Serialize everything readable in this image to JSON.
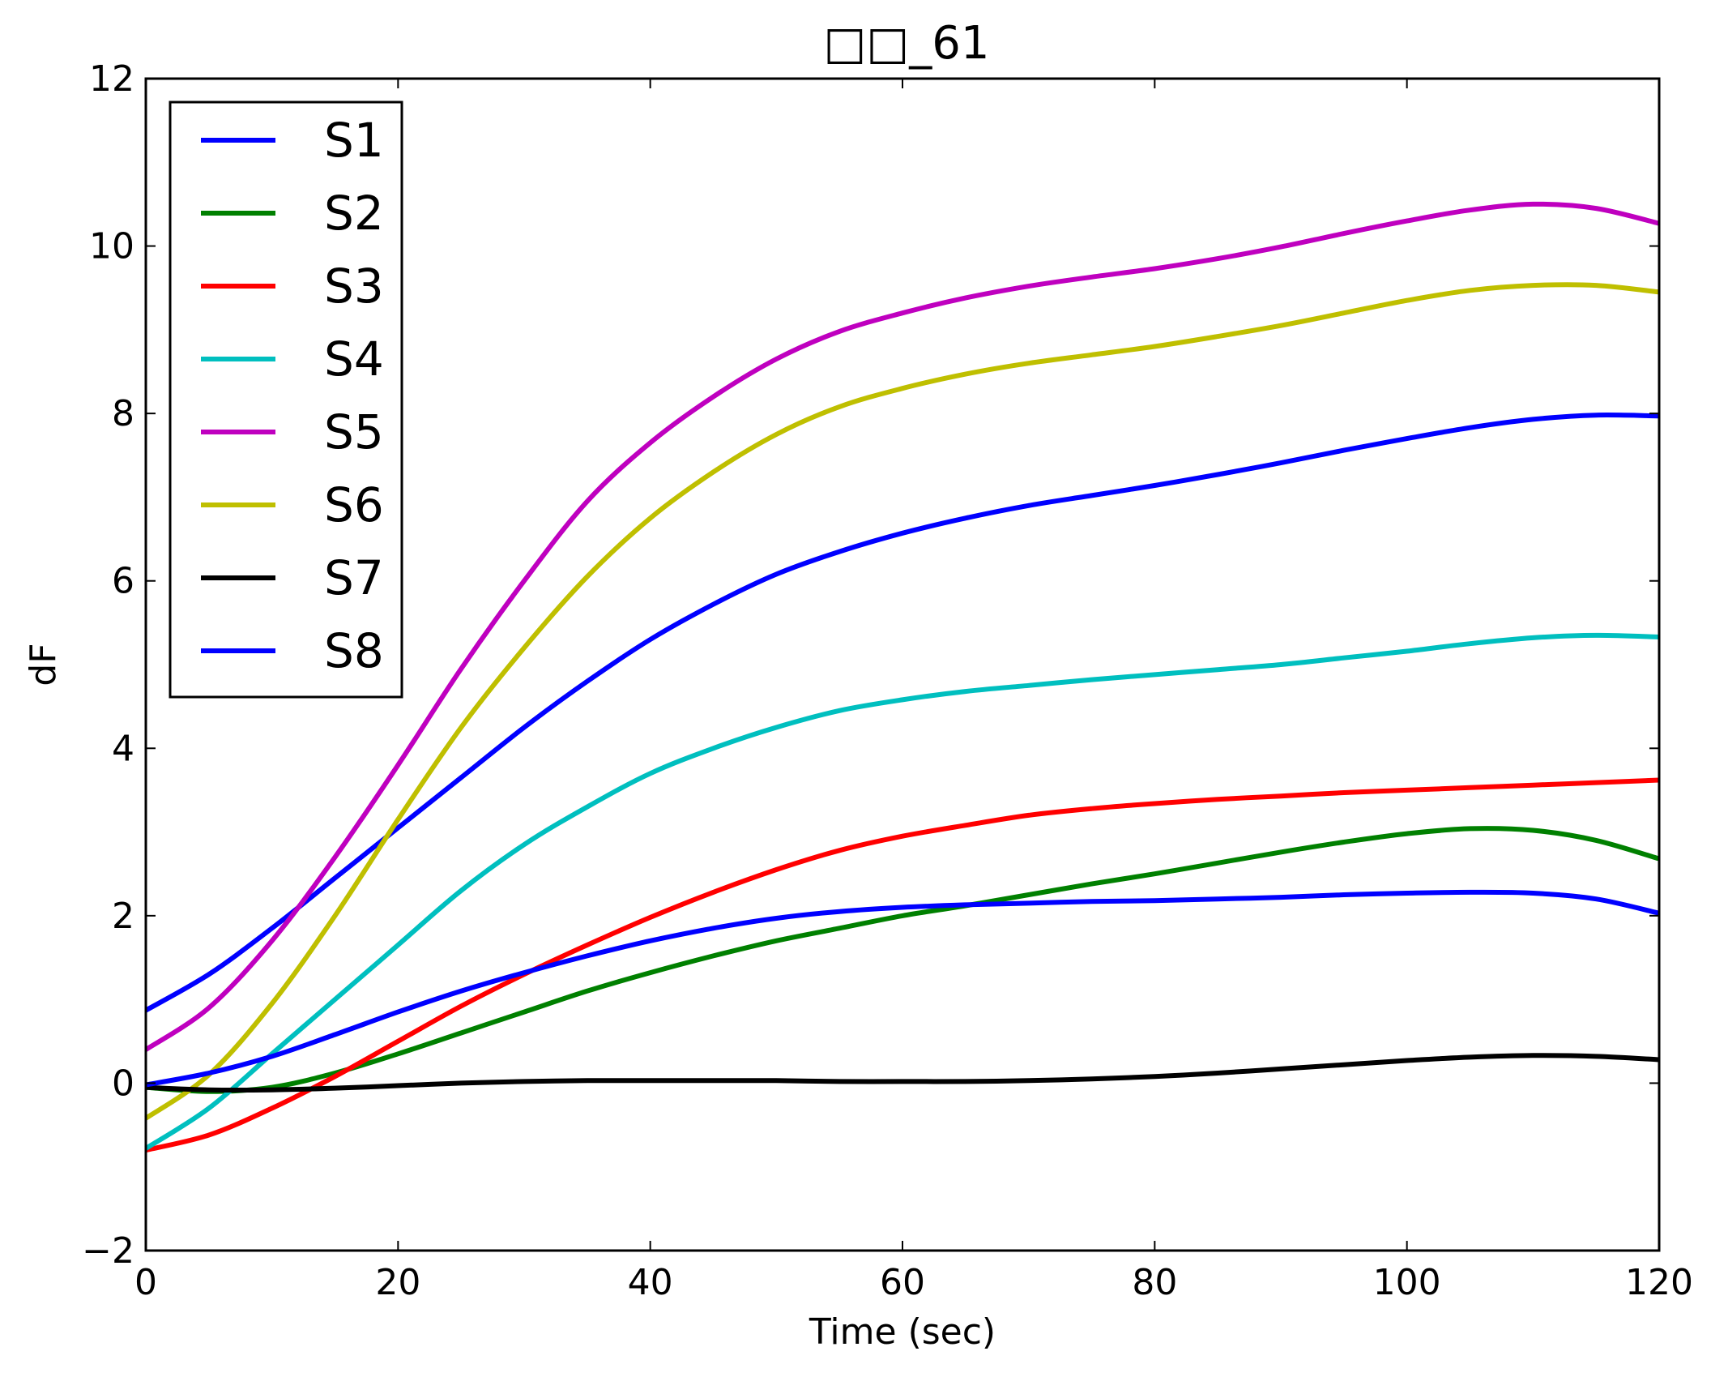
{
  "chart_data": {
    "type": "line",
    "title": "□□_61",
    "xlabel": "Time (sec)",
    "ylabel": "dF",
    "xlim": [
      0,
      120
    ],
    "ylim": [
      -2,
      12
    ],
    "x_ticks": [
      0,
      20,
      40,
      60,
      80,
      100,
      120
    ],
    "x_tick_labels": [
      "0",
      "20",
      "40",
      "60",
      "80",
      "100",
      "120"
    ],
    "y_ticks": [
      -2,
      0,
      2,
      4,
      6,
      8,
      10,
      12
    ],
    "y_tick_labels": [
      "−2",
      "0",
      "2",
      "4",
      "6",
      "8",
      "10",
      "12"
    ],
    "grid": false,
    "legend_position": "top-left",
    "x": [
      0,
      5,
      10,
      15,
      20,
      25,
      30,
      35,
      40,
      45,
      50,
      55,
      60,
      65,
      70,
      75,
      80,
      85,
      90,
      95,
      100,
      105,
      110,
      115,
      120
    ],
    "series": [
      {
        "name": "S1",
        "color": "#0000ff",
        "values": [
          0.87,
          1.3,
          1.85,
          2.45,
          3.05,
          3.65,
          4.25,
          4.8,
          5.3,
          5.72,
          6.08,
          6.35,
          6.57,
          6.75,
          6.9,
          7.02,
          7.14,
          7.27,
          7.41,
          7.56,
          7.7,
          7.83,
          7.93,
          7.98,
          7.97
        ]
      },
      {
        "name": "S2",
        "color": "#008000",
        "values": [
          -0.05,
          -0.1,
          -0.05,
          0.12,
          0.35,
          0.6,
          0.85,
          1.1,
          1.32,
          1.52,
          1.7,
          1.85,
          2.0,
          2.12,
          2.25,
          2.38,
          2.5,
          2.63,
          2.76,
          2.88,
          2.98,
          3.04,
          3.02,
          2.9,
          2.68
        ]
      },
      {
        "name": "S3",
        "color": "#ff0000",
        "values": [
          -0.8,
          -0.62,
          -0.3,
          0.08,
          0.5,
          0.92,
          1.3,
          1.65,
          1.98,
          2.28,
          2.55,
          2.78,
          2.95,
          3.08,
          3.2,
          3.28,
          3.34,
          3.39,
          3.43,
          3.47,
          3.5,
          3.53,
          3.56,
          3.59,
          3.62
        ]
      },
      {
        "name": "S4",
        "color": "#00bfbf",
        "values": [
          -0.78,
          -0.3,
          0.35,
          1.0,
          1.65,
          2.3,
          2.85,
          3.3,
          3.7,
          4.0,
          4.25,
          4.45,
          4.58,
          4.68,
          4.75,
          4.82,
          4.88,
          4.94,
          5.0,
          5.08,
          5.16,
          5.25,
          5.32,
          5.35,
          5.33
        ]
      },
      {
        "name": "S5",
        "color": "#bf00bf",
        "values": [
          0.4,
          0.9,
          1.7,
          2.7,
          3.8,
          4.95,
          6.0,
          6.95,
          7.65,
          8.2,
          8.65,
          8.98,
          9.2,
          9.38,
          9.52,
          9.63,
          9.73,
          9.85,
          9.99,
          10.15,
          10.3,
          10.43,
          10.5,
          10.45,
          10.27
        ]
      },
      {
        "name": "S6",
        "color": "#bfbf00",
        "values": [
          -0.42,
          0.1,
          0.95,
          2.0,
          3.15,
          4.25,
          5.2,
          6.05,
          6.75,
          7.3,
          7.75,
          8.08,
          8.3,
          8.47,
          8.6,
          8.7,
          8.8,
          8.92,
          9.05,
          9.2,
          9.35,
          9.47,
          9.53,
          9.53,
          9.45
        ]
      },
      {
        "name": "S7",
        "color": "#000000",
        "values": [
          -0.05,
          -0.08,
          -0.08,
          -0.06,
          -0.03,
          0.0,
          0.02,
          0.03,
          0.03,
          0.03,
          0.03,
          0.02,
          0.02,
          0.02,
          0.03,
          0.05,
          0.08,
          0.12,
          0.17,
          0.22,
          0.27,
          0.31,
          0.33,
          0.32,
          0.28
        ]
      },
      {
        "name": "S8",
        "color": "#0000ff",
        "values": [
          -0.02,
          0.12,
          0.32,
          0.58,
          0.85,
          1.1,
          1.32,
          1.52,
          1.7,
          1.85,
          1.97,
          2.05,
          2.1,
          2.13,
          2.15,
          2.17,
          2.18,
          2.2,
          2.22,
          2.25,
          2.27,
          2.28,
          2.27,
          2.2,
          2.03
        ]
      }
    ]
  }
}
